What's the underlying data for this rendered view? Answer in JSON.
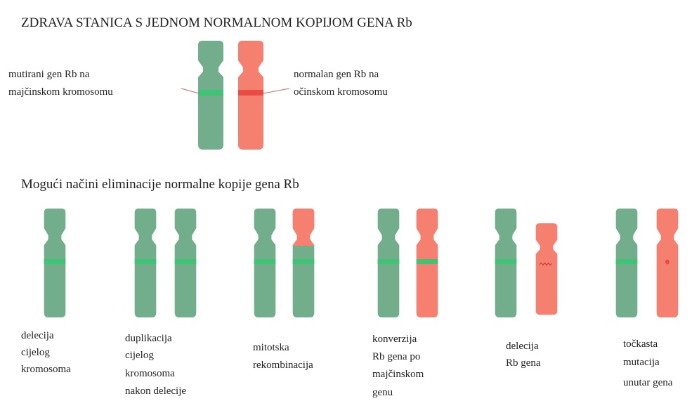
{
  "title": "ZDRAVA STANICA S JEDNOM NORMALNOM KOPIJOM GENA Rb",
  "top_labels": {
    "left": [
      "mutirani gen Rb na",
      "majčinskom kromosomu"
    ],
    "right": [
      "normalan gen Rb na",
      "očinskom kromosomu"
    ]
  },
  "subtitle": "Mogući načini eliminacije normalne kopije gena Rb",
  "scenarios": [
    {
      "label": [
        "delecija",
        "cijelog",
        "kromosoma"
      ]
    },
    {
      "label": [
        "duplikacija",
        "cijelog",
        "kromosoma",
        "nakon delecije"
      ]
    },
    {
      "label": [
        "mitotska",
        "rekombinacija"
      ]
    },
    {
      "label": [
        "konverzija",
        "Rb gena po",
        "majčinskom",
        "genu"
      ]
    },
    {
      "label": [
        "delecija",
        "Rb gena"
      ]
    },
    {
      "label": [
        "točkasta",
        "mutacija",
        "unutar gena"
      ]
    }
  ]
}
